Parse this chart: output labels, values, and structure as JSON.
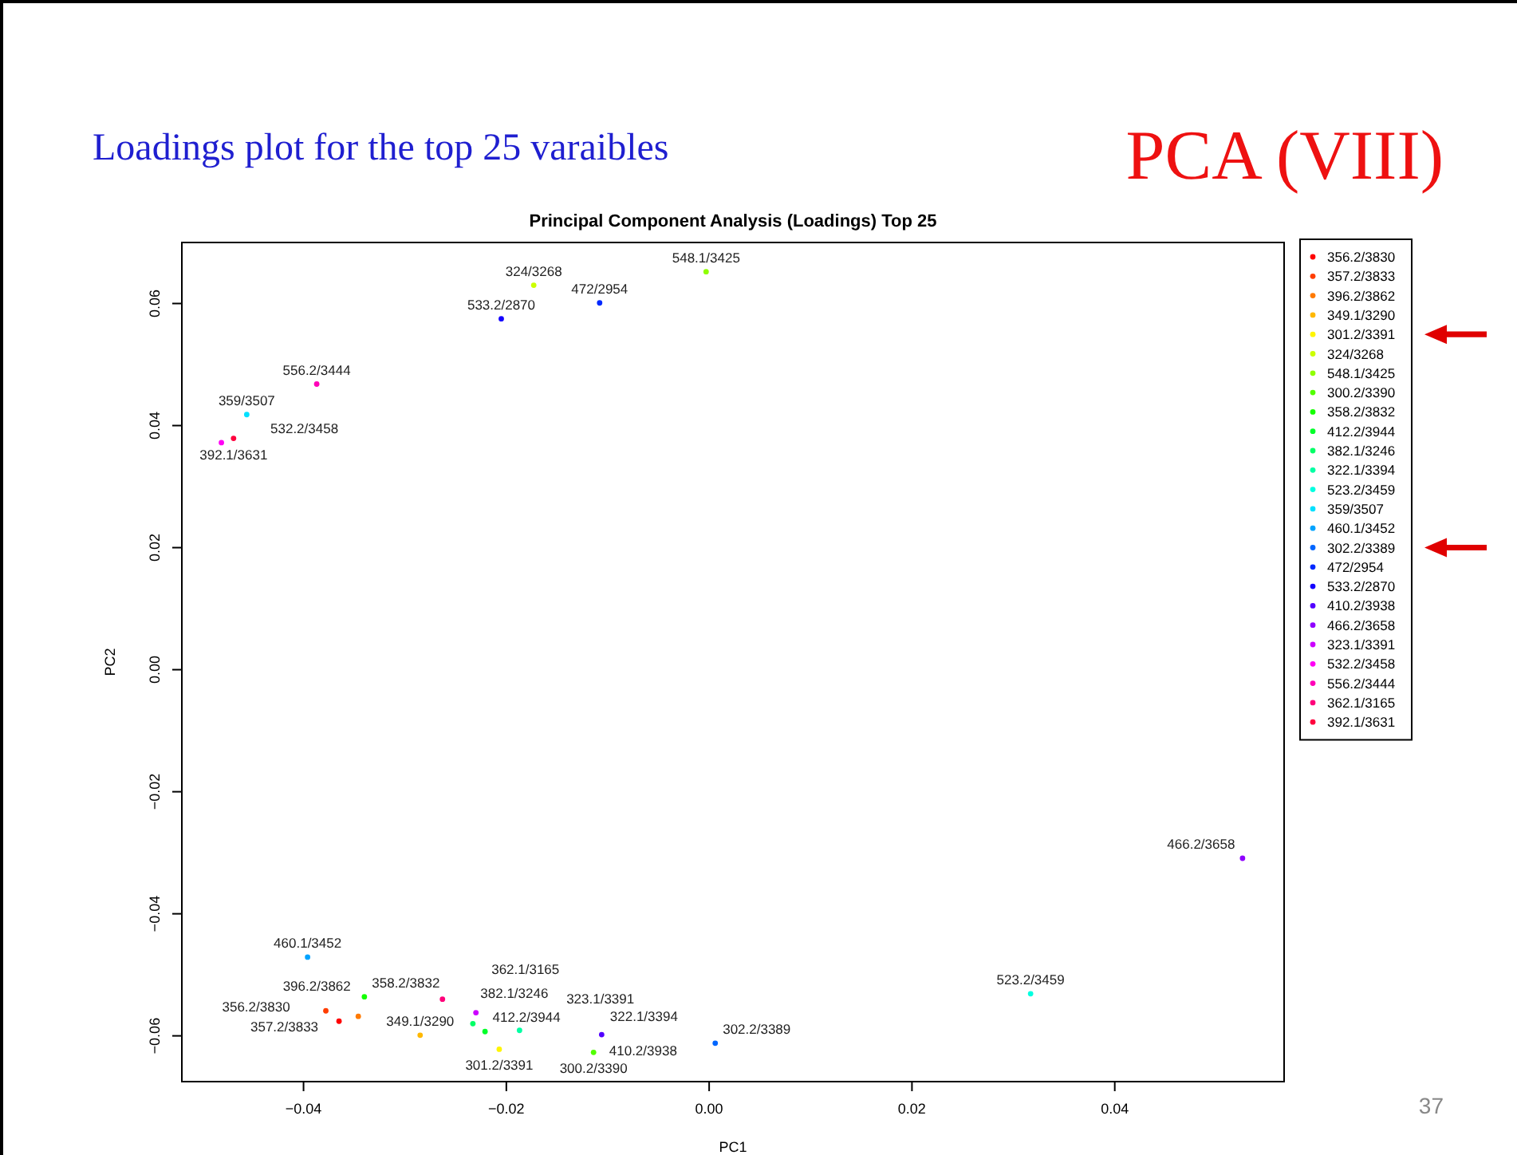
{
  "chart_data": {
    "type": "scatter",
    "title": "Principal Component Analysis (Loadings) Top 25",
    "subtitle": "Loadings plot for the top 25 varaibles",
    "xlabel": "PC1",
    "ylabel": "PC2",
    "annotations": [
      "PCA (VIII)",
      "37"
    ],
    "xlim": [
      -0.052,
      0.0567
    ],
    "ylim": [
      -0.0675,
      0.07
    ],
    "xticks": [
      -0.04,
      -0.02,
      {
        "value": 0,
        "label": "0.00"
      },
      0.02,
      0.04
    ],
    "yticks": [
      -0.06,
      -0.04,
      -0.02,
      {
        "value": 0,
        "label": "0.00"
      },
      0.02,
      0.04,
      0.06
    ],
    "grid": false,
    "legend": "right",
    "marker": "circle",
    "series": [
      {
        "name": "356.2/3830",
        "color": "#ff0000",
        "x": [
          -0.0365
        ],
        "values": [
          -0.0576
        ]
      },
      {
        "name": "357.2/3833",
        "color": "#ff3d00",
        "x": [
          -0.0378
        ],
        "values": [
          -0.0559
        ]
      },
      {
        "name": "396.2/3862",
        "color": "#ff7a00",
        "x": [
          -0.0346
        ],
        "values": [
          -0.0568
        ]
      },
      {
        "name": "349.1/3290",
        "color": "#ffb800",
        "x": [
          -0.0285
        ],
        "values": [
          -0.0599
        ]
      },
      {
        "name": "301.2/3391",
        "color": "#fff500",
        "x": [
          -0.0207
        ],
        "values": [
          -0.0622
        ]
      },
      {
        "name": "324/3268",
        "color": "#ccff00",
        "x": [
          -0.0173
        ],
        "values": [
          0.063
        ]
      },
      {
        "name": "548.1/3425",
        "color": "#8fff00",
        "x": [
          -0.0003
        ],
        "values": [
          0.0652
        ]
      },
      {
        "name": "300.2/3390",
        "color": "#52ff00",
        "x": [
          -0.0114
        ],
        "values": [
          -0.0627
        ]
      },
      {
        "name": "358.2/3832",
        "color": "#14ff00",
        "x": [
          -0.034
        ],
        "values": [
          -0.0536
        ]
      },
      {
        "name": "412.2/3944",
        "color": "#00ff29",
        "x": [
          -0.0221
        ],
        "values": [
          -0.0593
        ]
      },
      {
        "name": "382.1/3246",
        "color": "#00ff66",
        "x": [
          -0.0233
        ],
        "values": [
          -0.058
        ]
      },
      {
        "name": "322.1/3394",
        "color": "#00ffa3",
        "x": [
          -0.0187
        ],
        "values": [
          -0.0591
        ]
      },
      {
        "name": "523.2/3459",
        "color": "#00ffe0",
        "x": [
          0.0317
        ],
        "values": [
          -0.0531
        ]
      },
      {
        "name": "359/3507",
        "color": "#00e0ff",
        "x": [
          -0.0456
        ],
        "values": [
          0.0418
        ]
      },
      {
        "name": "460.1/3452",
        "color": "#00a3ff",
        "x": [
          -0.0396
        ],
        "values": [
          -0.0471
        ]
      },
      {
        "name": "302.2/3389",
        "color": "#0066ff",
        "x": [
          0.0006
        ],
        "values": [
          -0.0612
        ]
      },
      {
        "name": "472/2954",
        "color": "#0029ff",
        "x": [
          -0.0108
        ],
        "values": [
          0.0601
        ]
      },
      {
        "name": "533.2/2870",
        "color": "#1400ff",
        "x": [
          -0.0205
        ],
        "values": [
          0.0575
        ]
      },
      {
        "name": "410.2/3938",
        "color": "#5200ff",
        "x": [
          -0.0106
        ],
        "values": [
          -0.0598
        ]
      },
      {
        "name": "466.2/3658",
        "color": "#8f00ff",
        "x": [
          0.0526
        ],
        "values": [
          -0.0309
        ]
      },
      {
        "name": "323.1/3391",
        "color": "#cc00ff",
        "x": [
          -0.023
        ],
        "values": [
          -0.0562
        ]
      },
      {
        "name": "532.2/3458",
        "color": "#ff00f5",
        "x": [
          -0.0481
        ],
        "values": [
          0.0372
        ]
      },
      {
        "name": "556.2/3444",
        "color": "#ff00b8",
        "x": [
          -0.0387
        ],
        "values": [
          0.0468
        ]
      },
      {
        "name": "362.1/3165",
        "color": "#ff007a",
        "x": [
          -0.0263
        ],
        "values": [
          -0.054
        ]
      },
      {
        "name": "392.1/3631",
        "color": "#ff003d",
        "x": [
          -0.0469
        ],
        "values": [
          0.0379
        ]
      }
    ]
  }
}
